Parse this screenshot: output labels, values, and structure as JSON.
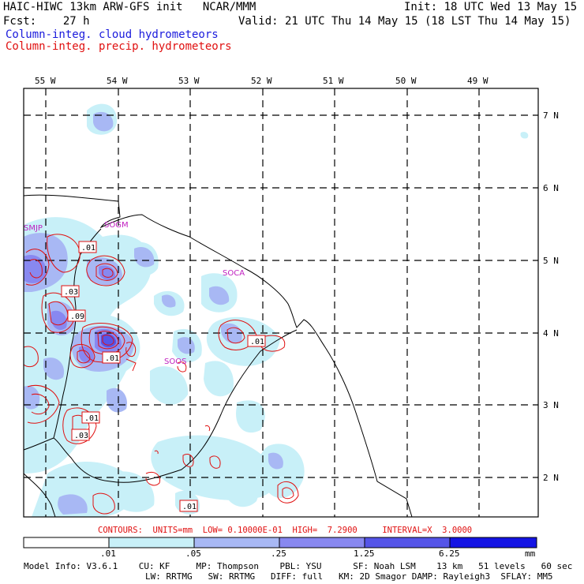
{
  "header": {
    "line1_left": "HAIC-HIWC 13km ARW-GFS init   NCAR/MMM",
    "line1_right": "Init: 18 UTC Wed 13 May 15",
    "line2_left": "Fcst:    27 h",
    "line2_right": "Valid: 21 UTC Thu 14 May 15 (18 LST Thu 14 May 15)",
    "legend_cloud": "Column-integ. cloud hydrometeors",
    "legend_precip": "Column-integ. precip. hydrometeors"
  },
  "map": {
    "lon_labels": [
      "55 W",
      "54 W",
      "53 W",
      "52 W",
      "51 W",
      "50 W",
      "49 W"
    ],
    "lat_labels": [
      "7 N",
      "6 N",
      "5 N",
      "4 N",
      "3 N",
      "2 N"
    ],
    "stations": [
      "SMJP",
      "SOGM",
      "SOCA",
      "SOOS"
    ],
    "contour_labels": [
      ".01",
      ".03",
      ".09",
      ".01",
      ".01",
      ".01",
      ".03",
      ".01"
    ]
  },
  "contours_line": "CONTOURS:  UNITS=mm  LOW= 0.10000E-01  HIGH=  7.2900     INTERVAL=X  3.0000",
  "colorbar": {
    "colors": [
      "#ffffff",
      "#c8f0f8",
      "#a8b8f4",
      "#8888f0",
      "#5555e8",
      "#1414e4"
    ],
    "ticks": [
      ".01",
      ".05",
      ".25",
      "1.25",
      "6.25"
    ],
    "units": "mm"
  },
  "footer": {
    "line1": "Model Info: V3.6.1    CU: KF     MP: Thompson    PBL: YSU      SF: Noah LSM    13 km   51 levels   60 sec",
    "line2": "LW: RRTMG   SW: RRTMG   DIFF: full   KM: 2D Smagor DAMP: Rayleigh3  SFLAY: MM5"
  },
  "colors": {
    "cloud_light": "#c8f0f8",
    "cloud_mid": "#a8b8f4",
    "cloud_dark": "#8888f0",
    "precip_line": "#e01010",
    "station": "#c020c0"
  }
}
